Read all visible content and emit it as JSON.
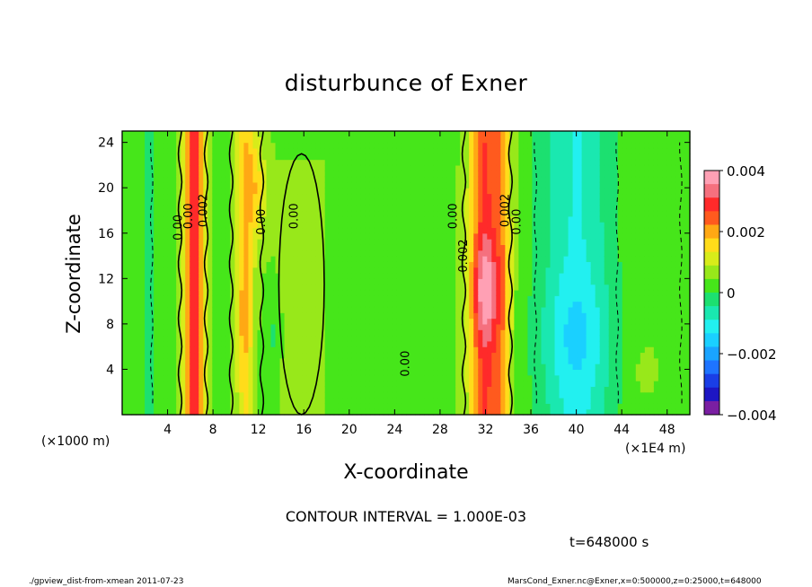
{
  "chart_data": {
    "type": "heatmap",
    "title": "disturbunce of Exner",
    "xlabel": "X-coordinate",
    "ylabel": "Z-coordinate",
    "x_unit_note": "(×1E4 m)",
    "y_unit_note": "(×1000 m)",
    "xlim": [
      0,
      50
    ],
    "ylim": [
      0,
      25
    ],
    "x_ticks": [
      4,
      8,
      12,
      16,
      20,
      24,
      28,
      32,
      36,
      40,
      44,
      48
    ],
    "y_ticks": [
      4,
      8,
      12,
      16,
      20,
      24
    ],
    "colorbar": {
      "range": [
        -0.004,
        0.004
      ],
      "labels": [
        "0.004",
        "0.002",
        "0",
        "−0.002",
        "−0.004"
      ],
      "levels": [
        -0.004,
        -0.0035,
        -0.003,
        -0.0025,
        -0.002,
        -0.0015,
        -0.001,
        -0.0005,
        0,
        0.0005,
        0.001,
        0.0015,
        0.002,
        0.0025,
        0.003,
        0.0035,
        0.004
      ],
      "colors": [
        "#7a1fa2",
        "#1d16c4",
        "#1a3ee6",
        "#1e74ff",
        "#1aa4ff",
        "#1ad0ff",
        "#22f0f0",
        "#1ae8b0",
        "#1ce070",
        "#46e61a",
        "#98e81a",
        "#d8ec1a",
        "#ffdc1a",
        "#ffa814",
        "#ff5a1e",
        "#ff2a2a",
        "#f5707e",
        "#ffa0b4"
      ]
    },
    "contour_interval": "1.000E-03",
    "contour_labels": [
      "0.00",
      "0.002"
    ],
    "features": [
      {
        "x": 6.3,
        "z_range": [
          0,
          25
        ],
        "peak": 0.004
      },
      {
        "x": 10.8,
        "z_range": [
          0,
          25
        ],
        "peak": 0.003
      },
      {
        "x": 32.0,
        "z_range": [
          0,
          25
        ],
        "peak": 0.004
      },
      {
        "x": 40.0,
        "z_range": [
          0,
          25
        ],
        "peak": -0.0015
      },
      {
        "x": 15.8,
        "z_range": [
          0,
          23
        ],
        "peak": 0.0006
      }
    ]
  },
  "texts": {
    "contour_interval_line": "CONTOUR INTERVAL = 1.000E-03",
    "time": "t=648000 s",
    "footer_left": "./gpview_dist-from-xmean  2011-07-23",
    "footer_right": "MarsCond_Exner.nc@Exner,x=0:500000,z=0:25000,t=648000"
  }
}
